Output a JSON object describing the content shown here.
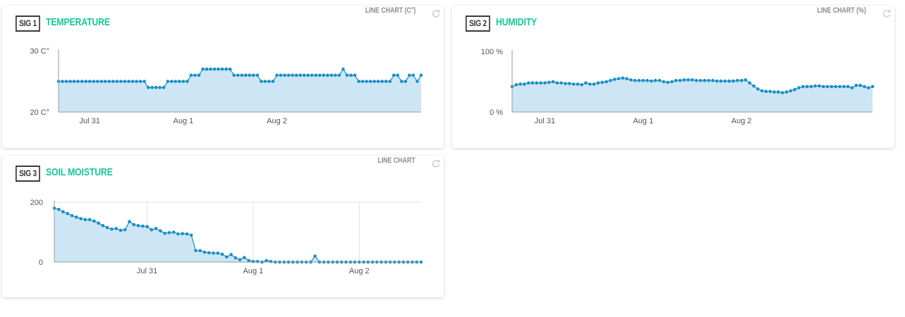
{
  "colors": {
    "accent": "#19c39a",
    "series_line": "#1a8fc4",
    "series_fill": "#cde5f4",
    "axis": "#999999"
  },
  "cards": [
    {
      "id": "temperature",
      "signal_label": "SIG 1",
      "title": "TEMPERATURE",
      "chart_type_label": "LINE CHART (C°)",
      "refresh_icon": "refresh-icon"
    },
    {
      "id": "humidity",
      "signal_label": "SIG 2",
      "title": "HUMIDITY",
      "chart_type_label": "LINE CHART (%)",
      "refresh_icon": "refresh-icon"
    },
    {
      "id": "soil-moisture",
      "signal_label": "SIG 3",
      "title": "SOIL MOISTURE",
      "chart_type_label": "LINE CHART",
      "refresh_icon": "refresh-icon"
    }
  ],
  "chart_data": [
    {
      "type": "area",
      "x_tick_labels": [
        "Jul 31",
        "Aug 1",
        "Aug 2"
      ],
      "y_tick_labels": [
        "20 C°",
        "30 C°"
      ],
      "ylim": [
        20,
        30
      ],
      "grid": false,
      "x_ticks": [
        8,
        32,
        56
      ],
      "series": [
        {
          "values": [
            25,
            25,
            25,
            25,
            25,
            25,
            25,
            25,
            25,
            25,
            25,
            25,
            25,
            25,
            25,
            25,
            25,
            25,
            25,
            25,
            25,
            25,
            25,
            24,
            24,
            24,
            24,
            24,
            25,
            25,
            25,
            25,
            25,
            25,
            26,
            26,
            26,
            27,
            27,
            27,
            27,
            27,
            27,
            27,
            27,
            26,
            26,
            26,
            26,
            26,
            26,
            26,
            25,
            25,
            25,
            25,
            26,
            26,
            26,
            26,
            26,
            26,
            26,
            26,
            26,
            26,
            26,
            26,
            26,
            26,
            26,
            26,
            26,
            27,
            26,
            26,
            26,
            25,
            25,
            25,
            25,
            25,
            25,
            25,
            25,
            25,
            26,
            26,
            25,
            25,
            26,
            26,
            25,
            26
          ]
        }
      ]
    },
    {
      "type": "area",
      "x_tick_labels": [
        "Jul 31",
        "Aug 1",
        "Aug 2"
      ],
      "y_tick_labels": [
        "0 %",
        "100 %"
      ],
      "ylim": [
        0,
        100
      ],
      "grid": false,
      "x_ticks": [
        8,
        32,
        56
      ],
      "series": [
        {
          "values": [
            42,
            45,
            46,
            46,
            48,
            48,
            48,
            48,
            48,
            49,
            50,
            48,
            48,
            47,
            47,
            46,
            46,
            45,
            48,
            46,
            46,
            48,
            49,
            50,
            52,
            54,
            55,
            56,
            55,
            53,
            52,
            52,
            52,
            52,
            51,
            52,
            52,
            50,
            49,
            50,
            52,
            52,
            53,
            53,
            53,
            52,
            52,
            52,
            52,
            52,
            51,
            51,
            51,
            51,
            51,
            52,
            52,
            53,
            48,
            43,
            38,
            35,
            34,
            34,
            33,
            33,
            32,
            33,
            35,
            37,
            40,
            42,
            42,
            42,
            43,
            43,
            42,
            42,
            42,
            42,
            42,
            42,
            42,
            40,
            44,
            44,
            42,
            40,
            42
          ]
        }
      ]
    },
    {
      "type": "area",
      "x_tick_labels": [
        "Jul 31",
        "Aug 1",
        "Aug 2"
      ],
      "y_tick_labels": [
        "0",
        "200"
      ],
      "ylim": [
        0,
        200
      ],
      "grid": true,
      "x_ticks": [
        21,
        45,
        69
      ],
      "series": [
        {
          "values": [
            180,
            176,
            168,
            162,
            155,
            150,
            145,
            142,
            142,
            137,
            130,
            122,
            115,
            110,
            112,
            106,
            108,
            135,
            125,
            122,
            120,
            118,
            108,
            112,
            104,
            96,
            98,
            100,
            94,
            95,
            94,
            90,
            38,
            38,
            33,
            31,
            30,
            30,
            26,
            17,
            25,
            14,
            8,
            15,
            5,
            2,
            2,
            0,
            5,
            2,
            0,
            0,
            0,
            0,
            0,
            0,
            0,
            0,
            0,
            20,
            0,
            0,
            0,
            0,
            0,
            0,
            0,
            0,
            0,
            0,
            0,
            0,
            0,
            0,
            0,
            0,
            0,
            0,
            0,
            0,
            0,
            0,
            0,
            0
          ]
        }
      ]
    }
  ]
}
